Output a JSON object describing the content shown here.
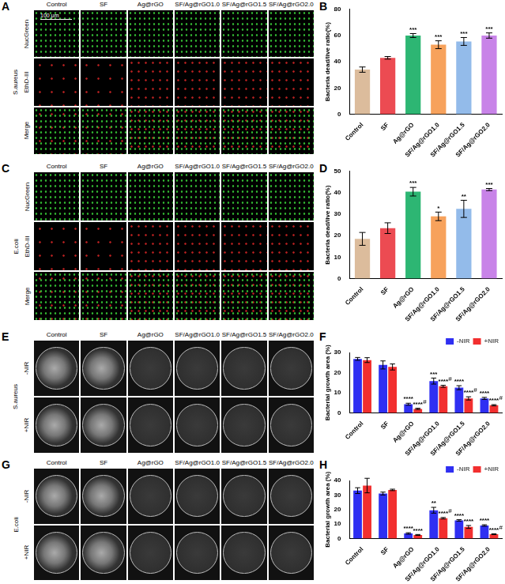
{
  "panels": [
    {
      "label": "A",
      "type": "micrograph",
      "organism": "S.aureus",
      "columns": [
        "Control",
        "SF",
        "Ag@rGO",
        "SF/Ag@rGO1.0",
        "SF/Ag@rGO1.5",
        "SF/Ag@rGO2.0"
      ],
      "rows": [
        "NucGreen",
        "EthD-III",
        "Merge"
      ],
      "scale_bar": "100 μm"
    },
    {
      "label": "C",
      "type": "micrograph",
      "organism": "E.coli",
      "columns": [
        "Control",
        "SF",
        "Ag@rGO",
        "SF/Ag@rGO1.0",
        "SF/Ag@rGO1.5",
        "SF/Ag@rGO2.0"
      ],
      "rows": [
        "NucGreen",
        "EthD-III",
        "Merge"
      ]
    },
    {
      "label": "E",
      "type": "plate",
      "organism": "S.aureus",
      "columns": [
        "Control",
        "SF",
        "Ag@rGO",
        "SF/Ag@rGO1.0",
        "SF/Ag@rGO1.5",
        "SF/Ag@rGO2.0"
      ],
      "rows": [
        "-NIR",
        "+NIR"
      ]
    },
    {
      "label": "G",
      "type": "plate",
      "organism": "E.coli",
      "columns": [
        "Control",
        "SF",
        "Ag@rGO",
        "SF/Ag@rGO1.0",
        "SF/Ag@rGO1.5",
        "SF/Ag@rGO2.0"
      ],
      "rows": [
        "-NIR",
        "+NIR"
      ]
    }
  ],
  "chart_data": [
    {
      "label": "B",
      "type": "bar",
      "categories": [
        "Control",
        "SF",
        "Ag@rGO",
        "SF/Ag@rGO1.0",
        "SF/Ag@rGO1.5",
        "SF/Ag@rGO2.0"
      ],
      "values": [
        34,
        43,
        60,
        53,
        55.5,
        60
      ],
      "errors": [
        2,
        1,
        1.5,
        3,
        3,
        2
      ],
      "significance": [
        null,
        null,
        "***",
        "***",
        "***",
        "***"
      ],
      "colors": [
        "#dcbc9c",
        "#ec4b52",
        "#2db673",
        "#f7a25c",
        "#93bbea",
        "#c883e8"
      ],
      "y_label": "Bacteria dead/live ratio(%)",
      "ylim": [
        0,
        80
      ],
      "yticks": [
        0,
        20,
        40,
        60,
        80
      ]
    },
    {
      "label": "D",
      "type": "bar",
      "categories": [
        "Control",
        "SF",
        "Ag@rGO",
        "SF/Ag@rGO1.0",
        "SF/Ag@rGO1.5",
        "SF/Ag@rGO2.0"
      ],
      "values": [
        18.5,
        23.5,
        40.5,
        29,
        32.5,
        41.5
      ],
      "errors": [
        3,
        2.5,
        2,
        2,
        4,
        0.5
      ],
      "significance": [
        null,
        null,
        "***",
        "*",
        "**",
        "***"
      ],
      "colors": [
        "#dcbc9c",
        "#ec4b52",
        "#2db673",
        "#f7a25c",
        "#93bbea",
        "#c883e8"
      ],
      "y_label": "Bacteria dead/live ratio(%)",
      "ylim": [
        0,
        50
      ],
      "yticks": [
        0,
        10,
        20,
        30,
        40,
        50
      ]
    },
    {
      "label": "F",
      "type": "bar",
      "categories": [
        "Control",
        "SF",
        "Ag@rGO",
        "SF/Ag@rGO1.0",
        "SF/Ag@rGO1.5",
        "SF/Ag@rGO2.0"
      ],
      "series": [
        {
          "name": "-NIR",
          "color": "#2f2ff2",
          "values": [
            26.8,
            23.8,
            4.3,
            15.8,
            12.5,
            7.2
          ],
          "errors": [
            0.7,
            2,
            0.5,
            1.5,
            1,
            0.5
          ],
          "significance": [
            null,
            null,
            "****",
            "***",
            "****",
            "****"
          ],
          "hash": [
            null,
            null,
            null,
            null,
            null,
            null
          ]
        },
        {
          "name": "+NIR",
          "color": "#f22f2f",
          "values": [
            26.2,
            22.8,
            2,
            13.2,
            7.2,
            3.8
          ],
          "errors": [
            1.2,
            1.5,
            0.3,
            0.5,
            0.8,
            0.3
          ],
          "significance": [
            null,
            null,
            "****",
            "****",
            "****",
            "****"
          ],
          "hash": [
            null,
            null,
            "#",
            "#",
            "#",
            "#"
          ]
        }
      ],
      "legend": "top-right",
      "y_label": "Bacterial growth area (%)",
      "ylim": [
        0,
        30
      ],
      "yticks": [
        0,
        10,
        20,
        30
      ]
    },
    {
      "label": "H",
      "type": "bar",
      "categories": [
        "Control",
        "SF",
        "Ag@rGO",
        "SF/Ag@rGO1.0",
        "SF/Ag@rGO1.5",
        "SF/Ag@rGO2.0"
      ],
      "series": [
        {
          "name": "-NIR",
          "color": "#2f2ff2",
          "values": [
            33,
            31,
            3.5,
            19.5,
            12.5,
            9
          ],
          "errors": [
            2,
            1,
            0.5,
            2,
            0.5,
            0.5
          ],
          "significance": [
            null,
            null,
            "****",
            "**",
            "****",
            "****"
          ],
          "hash": [
            null,
            null,
            null,
            null,
            null,
            null
          ]
        },
        {
          "name": "+NIR",
          "color": "#f22f2f",
          "values": [
            36.5,
            33.5,
            2.5,
            14,
            8,
            3
          ],
          "errors": [
            5,
            0.5,
            0.3,
            0.5,
            1,
            0.3
          ],
          "significance": [
            null,
            null,
            "****",
            "****",
            "****",
            "****"
          ],
          "hash": [
            null,
            null,
            null,
            "#",
            null,
            "#"
          ]
        }
      ],
      "legend": "top-right",
      "y_label": "Bacterial growth area (%)",
      "ylim": [
        0,
        40
      ],
      "yticks": [
        0,
        10,
        20,
        30,
        40
      ]
    }
  ]
}
